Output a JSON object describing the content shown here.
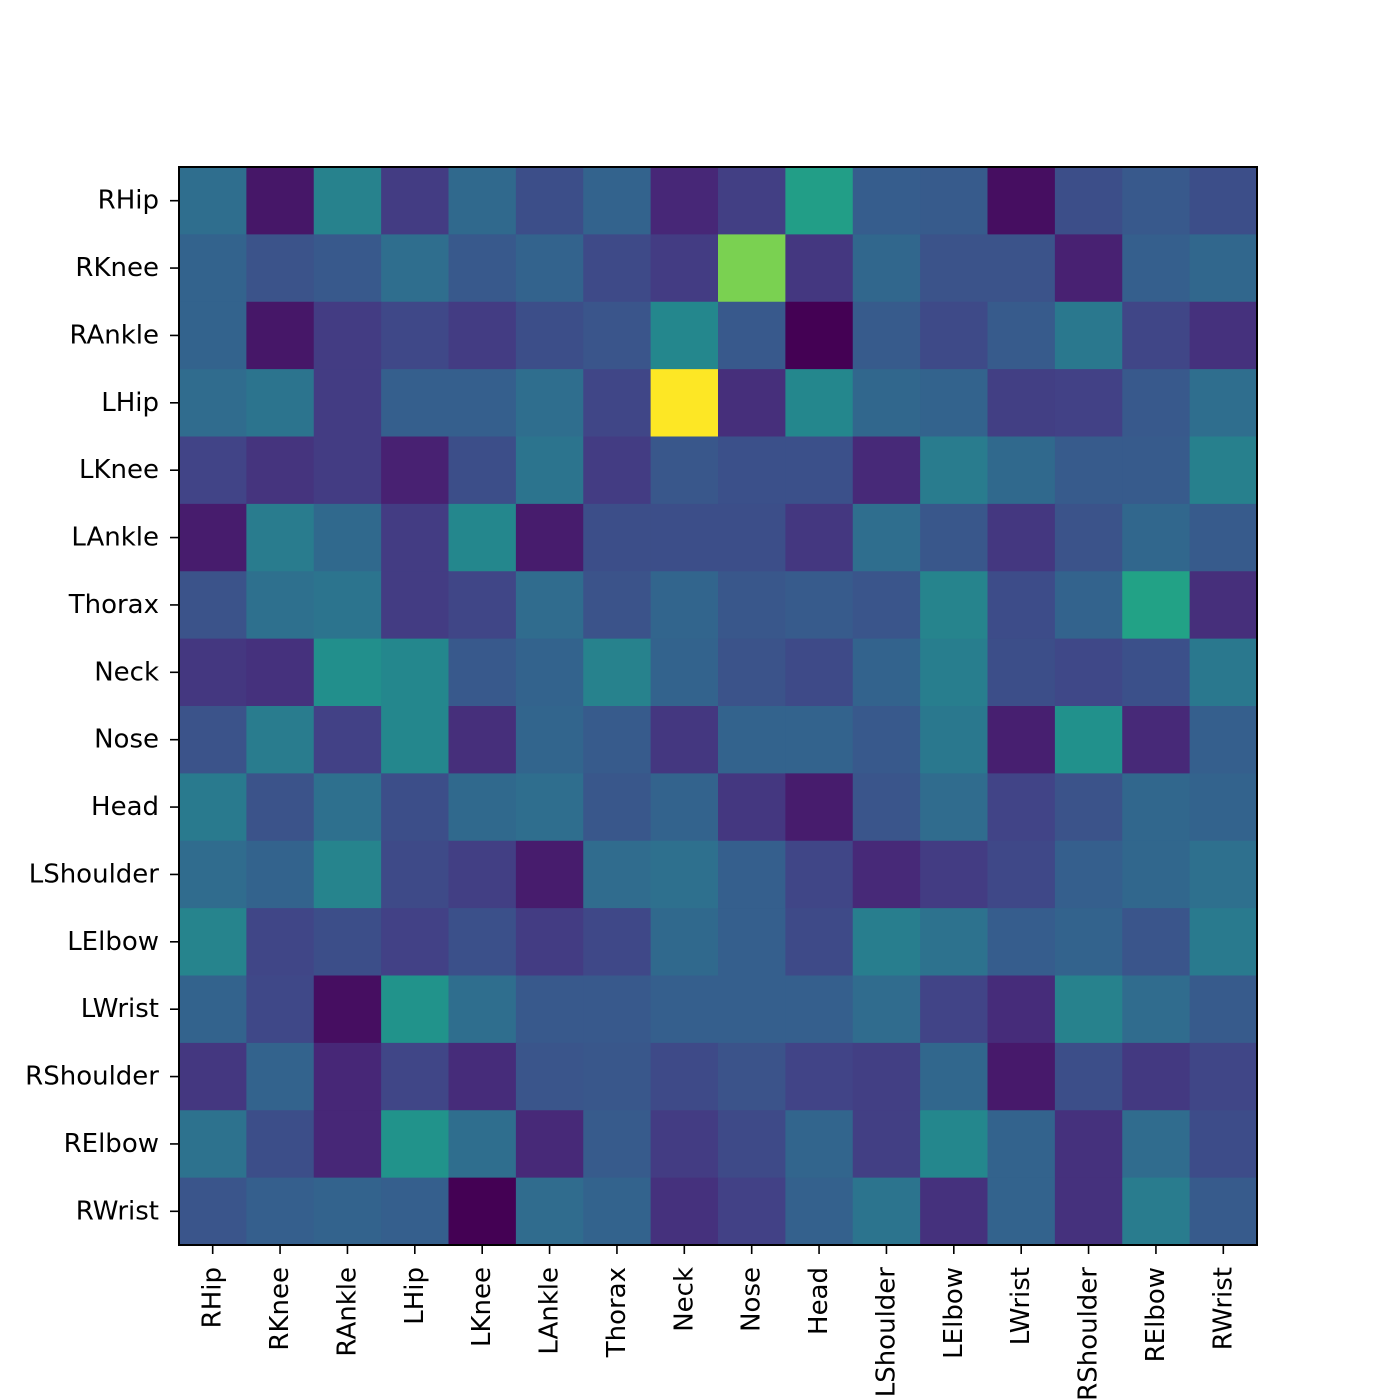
{
  "chart_data": {
    "type": "heatmap",
    "title": "",
    "xlabel": "",
    "ylabel": "",
    "colormap": "viridis",
    "value_range": [
      0,
      1
    ],
    "grid": false,
    "colorbar": false,
    "x_labels": [
      "RHip",
      "RKnee",
      "RAnkle",
      "LHip",
      "LKnee",
      "LAnkle",
      "Thorax",
      "Neck",
      "Nose",
      "Head",
      "LShoulder",
      "LElbow",
      "LWrist",
      "RShoulder",
      "RElbow",
      "RWrist"
    ],
    "y_labels": [
      "RHip",
      "RKnee",
      "RAnkle",
      "LHip",
      "LKnee",
      "LAnkle",
      "Thorax",
      "Neck",
      "Nose",
      "Head",
      "LShoulder",
      "LElbow",
      "LWrist",
      "RShoulder",
      "RElbow",
      "RWrist"
    ],
    "values": [
      [
        0.45,
        0.08,
        0.55,
        0.22,
        0.43,
        0.3,
        0.4,
        0.14,
        0.23,
        0.7,
        0.37,
        0.36,
        0.05,
        0.3,
        0.35,
        0.3
      ],
      [
        0.4,
        0.32,
        0.35,
        0.45,
        0.35,
        0.4,
        0.28,
        0.22,
        0.88,
        0.2,
        0.42,
        0.32,
        0.32,
        0.12,
        0.38,
        0.42
      ],
      [
        0.4,
        0.08,
        0.22,
        0.27,
        0.22,
        0.3,
        0.33,
        0.58,
        0.35,
        0.0,
        0.36,
        0.28,
        0.36,
        0.5,
        0.26,
        0.18
      ],
      [
        0.44,
        0.48,
        0.22,
        0.38,
        0.38,
        0.45,
        0.26,
        1.0,
        0.17,
        0.58,
        0.42,
        0.4,
        0.23,
        0.24,
        0.35,
        0.45
      ],
      [
        0.25,
        0.19,
        0.22,
        0.12,
        0.3,
        0.48,
        0.22,
        0.34,
        0.31,
        0.31,
        0.15,
        0.52,
        0.43,
        0.36,
        0.36,
        0.54
      ],
      [
        0.1,
        0.52,
        0.43,
        0.22,
        0.58,
        0.1,
        0.3,
        0.3,
        0.3,
        0.2,
        0.45,
        0.34,
        0.2,
        0.32,
        0.42,
        0.36
      ],
      [
        0.32,
        0.46,
        0.48,
        0.22,
        0.26,
        0.44,
        0.32,
        0.41,
        0.34,
        0.36,
        0.33,
        0.56,
        0.29,
        0.4,
        0.72,
        0.17
      ],
      [
        0.2,
        0.18,
        0.62,
        0.58,
        0.35,
        0.4,
        0.55,
        0.4,
        0.32,
        0.28,
        0.4,
        0.53,
        0.3,
        0.27,
        0.31,
        0.5
      ],
      [
        0.32,
        0.52,
        0.24,
        0.58,
        0.17,
        0.41,
        0.36,
        0.2,
        0.4,
        0.4,
        0.35,
        0.5,
        0.11,
        0.63,
        0.15,
        0.38
      ],
      [
        0.51,
        0.32,
        0.46,
        0.3,
        0.43,
        0.45,
        0.34,
        0.4,
        0.2,
        0.1,
        0.33,
        0.44,
        0.25,
        0.32,
        0.42,
        0.4
      ],
      [
        0.44,
        0.4,
        0.56,
        0.28,
        0.23,
        0.1,
        0.44,
        0.46,
        0.38,
        0.26,
        0.15,
        0.22,
        0.27,
        0.38,
        0.42,
        0.46
      ],
      [
        0.56,
        0.26,
        0.3,
        0.24,
        0.31,
        0.22,
        0.27,
        0.43,
        0.38,
        0.28,
        0.53,
        0.47,
        0.37,
        0.4,
        0.33,
        0.51
      ],
      [
        0.4,
        0.27,
        0.05,
        0.64,
        0.45,
        0.35,
        0.35,
        0.38,
        0.38,
        0.38,
        0.44,
        0.25,
        0.16,
        0.55,
        0.44,
        0.36
      ],
      [
        0.2,
        0.4,
        0.14,
        0.26,
        0.16,
        0.33,
        0.34,
        0.28,
        0.32,
        0.25,
        0.23,
        0.42,
        0.09,
        0.3,
        0.21,
        0.26
      ],
      [
        0.47,
        0.3,
        0.14,
        0.64,
        0.45,
        0.15,
        0.36,
        0.22,
        0.28,
        0.41,
        0.23,
        0.58,
        0.4,
        0.18,
        0.44,
        0.29
      ],
      [
        0.33,
        0.38,
        0.4,
        0.38,
        0.0,
        0.44,
        0.4,
        0.18,
        0.24,
        0.39,
        0.48,
        0.18,
        0.4,
        0.18,
        0.52,
        0.36
      ]
    ]
  }
}
